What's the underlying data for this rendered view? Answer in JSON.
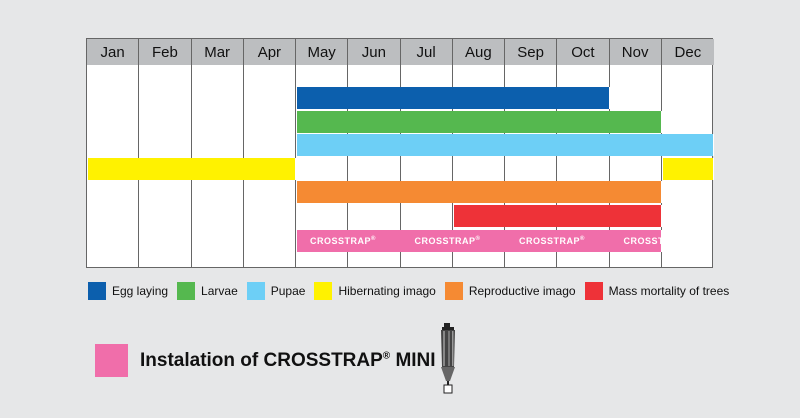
{
  "months": [
    "Jan",
    "Feb",
    "Mar",
    "Apr",
    "May",
    "Jun",
    "Jul",
    "Aug",
    "Sep",
    "Oct",
    "Nov",
    "Dec"
  ],
  "rows": [
    {
      "key": "egg",
      "color": "#0c5fad",
      "start": 4,
      "end": 9
    },
    {
      "key": "larvae",
      "color": "#55b84f",
      "start": 4,
      "end": 10
    },
    {
      "key": "pupae",
      "color": "#6dcff6",
      "start": 4,
      "end": 11
    },
    {
      "key": "hibernating",
      "color": "#fff200",
      "segments": [
        [
          0,
          3
        ],
        [
          11,
          11
        ]
      ]
    },
    {
      "key": "reproductive",
      "color": "#f58a33",
      "start": 4,
      "end": 10
    },
    {
      "key": "mortality",
      "color": "#ee3238",
      "start": 7,
      "end": 10
    }
  ],
  "crosstrap_row": {
    "color": "#f06eaa",
    "start": 4,
    "end": 10,
    "brand": "CROSSTRAP",
    "reg": "®",
    "label_months": [
      4,
      6,
      8,
      10
    ]
  },
  "legend": [
    {
      "label": "Egg laying",
      "color": "#0c5fad"
    },
    {
      "label": "Larvae",
      "color": "#55b84f"
    },
    {
      "label": "Pupae",
      "color": "#6dcff6"
    },
    {
      "label": "Hibernating imago",
      "color": "#fff200"
    },
    {
      "label": "Reproductive imago",
      "color": "#f58a33"
    },
    {
      "label": "Mass mortality of trees",
      "color": "#ee3238"
    }
  ],
  "installation": {
    "prefix": "Instalation of CROSSTRAP",
    "reg": "®",
    "suffix": " MINI",
    "color": "#f06eaa"
  },
  "icons": {
    "trap": "trap-icon"
  }
}
